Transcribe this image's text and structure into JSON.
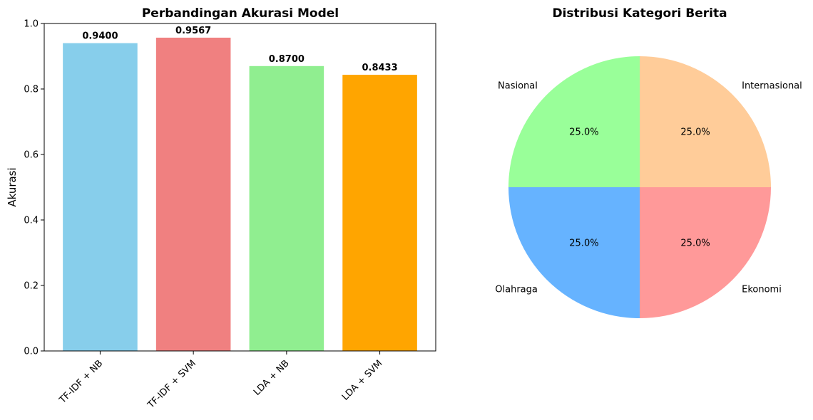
{
  "chart_data": [
    {
      "type": "bar",
      "title": "Perbandingan Akurasi Model",
      "xlabel": "",
      "ylabel": "Akurasi",
      "ylim": [
        0,
        1.0
      ],
      "yticks": [
        0.0,
        0.2,
        0.4,
        0.6,
        0.8,
        1.0
      ],
      "ytick_labels": [
        "0.0",
        "0.2",
        "0.4",
        "0.6",
        "0.8",
        "1.0"
      ],
      "categories": [
        "TF-IDF + NB",
        "TF-IDF + SVM",
        "LDA + NB",
        "LDA + SVM"
      ],
      "values": [
        0.94,
        0.9567,
        0.87,
        0.8433
      ],
      "value_labels": [
        "0.9400",
        "0.9567",
        "0.8700",
        "0.8433"
      ],
      "colors": [
        "#87CEEB",
        "#F08080",
        "#90EE90",
        "#FFA500"
      ],
      "grid": false,
      "legend": "none"
    },
    {
      "type": "pie",
      "title": "Distribusi Kategori Berita",
      "labels": [
        "Internasional",
        "Ekonomi",
        "Olahraga",
        "Nasional"
      ],
      "values": [
        25.0,
        25.0,
        25.0,
        25.0
      ],
      "pct_labels": [
        "25.0%",
        "25.0%",
        "25.0%",
        "25.0%"
      ],
      "colors": [
        "#FFCC99",
        "#FF9999",
        "#66B3FF",
        "#99FF99"
      ],
      "legend": "none"
    }
  ]
}
